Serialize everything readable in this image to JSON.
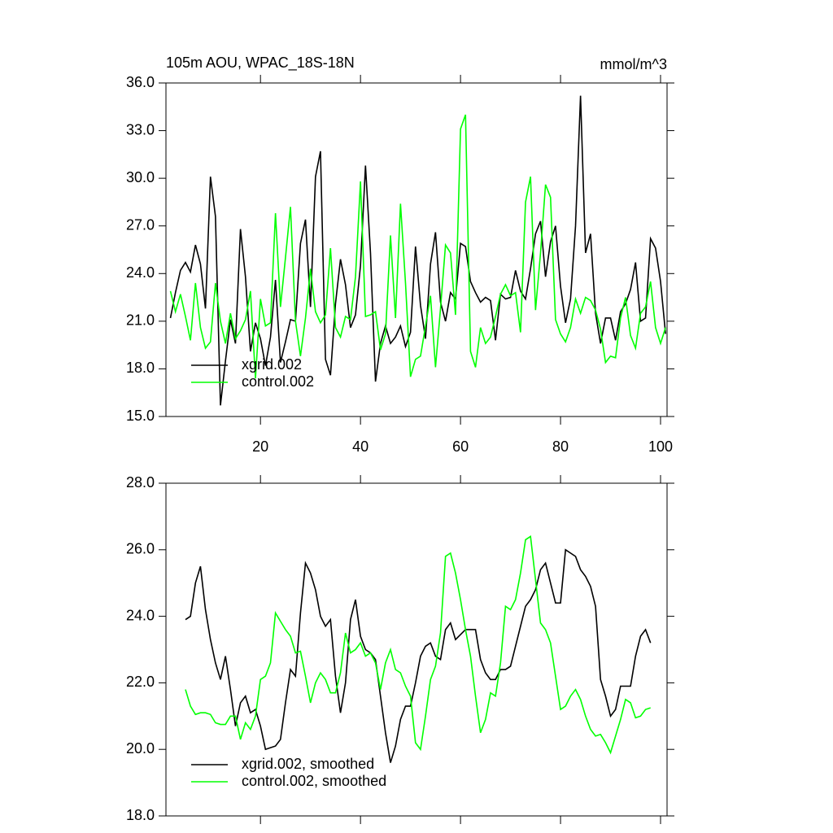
{
  "chart_data": [
    {
      "type": "line",
      "title": "105m AOU, WPAC_18S-18N",
      "units": "mmol/m^3",
      "x": [
        2,
        3,
        4,
        5,
        6,
        7,
        8,
        9,
        10,
        11,
        12,
        13,
        14,
        15,
        16,
        17,
        18,
        19,
        20,
        21,
        22,
        23,
        24,
        25,
        26,
        27,
        28,
        29,
        30,
        31,
        32,
        33,
        34,
        35,
        36,
        37,
        38,
        39,
        40,
        41,
        42,
        43,
        44,
        45,
        46,
        47,
        48,
        49,
        50,
        51,
        52,
        53,
        54,
        55,
        56,
        57,
        58,
        59,
        60,
        61,
        62,
        63,
        64,
        65,
        66,
        67,
        68,
        69,
        70,
        71,
        72,
        73,
        74,
        75,
        76,
        77,
        78,
        79,
        80,
        81,
        82,
        83,
        84,
        85,
        86,
        87,
        88,
        89,
        90,
        91,
        92,
        93,
        94,
        95,
        96,
        97,
        98,
        99,
        100,
        101
      ],
      "series": [
        {
          "name": "xgrid.002",
          "color": "#000000",
          "values": [
            21.2,
            22.8,
            24.2,
            24.7,
            24.1,
            25.8,
            24.6,
            21.8,
            30.1,
            27.6,
            15.7,
            18.5,
            21.1,
            19.6,
            26.8,
            23.8,
            19.1,
            20.9,
            19.9,
            18.2,
            20.0,
            23.6,
            18.4,
            19.7,
            21.1,
            21.0,
            25.9,
            27.4,
            21.9,
            30.1,
            31.7,
            18.6,
            17.6,
            22.1,
            24.9,
            23.3,
            20.6,
            21.4,
            24.5,
            30.8,
            25.3,
            17.2,
            19.6,
            20.7,
            19.6,
            20.0,
            20.7,
            19.4,
            20.3,
            25.7,
            22.0,
            19.9,
            24.6,
            26.6,
            22.2,
            21.0,
            22.8,
            22.4,
            25.9,
            25.7,
            23.5,
            22.8,
            22.2,
            22.5,
            22.3,
            19.8,
            22.7,
            22.4,
            22.5,
            24.2,
            22.9,
            22.4,
            24.3,
            26.5,
            27.3,
            23.8,
            26.0,
            27.0,
            23.2,
            20.9,
            22.4,
            27.0,
            35.2,
            25.3,
            26.5,
            21.5,
            19.6,
            21.2,
            21.2,
            19.8,
            21.6,
            22.1,
            23.0,
            24.7,
            21.0,
            21.2,
            26.2,
            25.6,
            23.5,
            20.2
          ]
        },
        {
          "name": "control.002",
          "color": "#00ff00",
          "values": [
            22.9,
            21.6,
            22.7,
            21.3,
            19.8,
            23.4,
            20.6,
            19.3,
            19.7,
            23.4,
            21.0,
            19.6,
            21.5,
            19.9,
            20.4,
            21.1,
            22.9,
            17.4,
            22.4,
            20.7,
            20.9,
            27.8,
            21.9,
            25.0,
            28.2,
            21.0,
            18.8,
            21.2,
            24.3,
            21.6,
            20.9,
            21.4,
            25.6,
            20.6,
            20.0,
            21.3,
            21.1,
            23.8,
            29.8,
            21.3,
            21.4,
            21.6,
            19.2,
            20.2,
            26.4,
            21.2,
            28.4,
            23.4,
            17.5,
            18.6,
            18.8,
            20.7,
            22.6,
            18.1,
            21.8,
            25.8,
            25.3,
            21.4,
            33.1,
            34.0,
            19.1,
            18.1,
            20.6,
            19.6,
            20.0,
            21.3,
            22.7,
            23.3,
            22.6,
            22.8,
            20.3,
            28.5,
            30.1,
            21.7,
            25.3,
            29.6,
            28.8,
            21.1,
            20.2,
            19.7,
            20.6,
            22.4,
            21.5,
            22.5,
            22.3,
            21.7,
            20.5,
            18.4,
            18.8,
            18.7,
            21.2,
            22.5,
            20.1,
            19.3,
            21.5,
            21.9,
            23.5,
            20.6,
            19.6,
            20.6
          ]
        }
      ],
      "xlim": [
        1.1,
        101.3
      ],
      "xticks": [
        20,
        40,
        60,
        80,
        100
      ],
      "xtick_labels": true,
      "ylim": [
        15,
        36
      ],
      "yticks": [
        {
          "value": 15,
          "label": "15.0"
        },
        {
          "value": 18,
          "label": "18.0"
        },
        {
          "value": 21,
          "label": "21.0"
        },
        {
          "value": 24,
          "label": "24.0"
        },
        {
          "value": 27,
          "label": "27.0"
        },
        {
          "value": 30,
          "label": "30.0"
        },
        {
          "value": 33,
          "label": "33.0"
        },
        {
          "value": 36,
          "label": "36.0"
        }
      ],
      "legend": "lower left"
    },
    {
      "type": "line",
      "x": [
        5,
        6,
        7,
        8,
        9,
        10,
        11,
        12,
        13,
        14,
        15,
        16,
        17,
        18,
        19,
        20,
        21,
        22,
        23,
        24,
        25,
        26,
        27,
        28,
        29,
        30,
        31,
        32,
        33,
        34,
        35,
        36,
        37,
        38,
        39,
        40,
        41,
        42,
        43,
        44,
        45,
        46,
        47,
        48,
        49,
        50,
        51,
        52,
        53,
        54,
        55,
        56,
        57,
        58,
        59,
        60,
        61,
        62,
        63,
        64,
        65,
        66,
        67,
        68,
        69,
        70,
        71,
        72,
        73,
        74,
        75,
        76,
        77,
        78,
        79,
        80,
        81,
        82,
        83,
        84,
        85,
        86,
        87,
        88,
        89,
        90,
        91,
        92,
        93,
        94,
        95,
        96,
        97,
        98
      ],
      "series": [
        {
          "name": "xgrid.002, smoothed",
          "color": "#000000",
          "values": [
            23.9,
            24.0,
            25.0,
            25.5,
            24.2,
            23.3,
            22.6,
            22.1,
            22.8,
            21.8,
            20.7,
            21.4,
            21.6,
            21.1,
            21.2,
            20.7,
            20.0,
            20.05,
            20.1,
            20.3,
            21.4,
            22.4,
            22.2,
            24.1,
            25.6,
            25.3,
            24.8,
            24.0,
            23.7,
            23.9,
            22.2,
            21.1,
            22.0,
            23.9,
            24.5,
            23.4,
            23.0,
            22.9,
            22.7,
            21.6,
            20.5,
            19.6,
            20.1,
            20.9,
            21.3,
            21.3,
            22.0,
            22.8,
            23.1,
            23.2,
            22.8,
            22.7,
            23.6,
            23.8,
            23.3,
            23.45,
            23.6,
            23.6,
            23.6,
            22.7,
            22.3,
            22.1,
            22.1,
            22.4,
            22.4,
            22.5,
            23.1,
            23.7,
            24.3,
            24.5,
            24.8,
            25.4,
            25.6,
            25.0,
            24.4,
            24.4,
            26.0,
            25.9,
            25.8,
            25.4,
            25.2,
            24.9,
            24.3,
            22.1,
            21.6,
            21.0,
            21.2,
            21.9,
            21.9,
            21.9,
            22.8,
            23.4,
            23.6,
            23.2
          ]
        },
        {
          "name": "control.002, smoothed",
          "color": "#00ff00",
          "values": [
            21.8,
            21.3,
            21.05,
            21.1,
            21.1,
            21.05,
            20.8,
            20.75,
            20.75,
            21.0,
            21.0,
            20.3,
            20.8,
            20.6,
            21.0,
            22.1,
            22.2,
            22.6,
            24.1,
            23.85,
            23.6,
            23.4,
            22.9,
            22.95,
            22.2,
            21.4,
            22.0,
            22.3,
            22.1,
            21.7,
            21.7,
            22.3,
            23.5,
            22.9,
            23.0,
            23.2,
            22.8,
            22.9,
            22.6,
            21.8,
            22.6,
            23.0,
            22.4,
            22.3,
            21.9,
            21.6,
            20.2,
            20.0,
            21.0,
            22.1,
            22.5,
            23.5,
            25.8,
            25.9,
            25.3,
            24.5,
            23.6,
            22.8,
            21.6,
            20.5,
            20.9,
            21.7,
            21.6,
            22.6,
            24.3,
            24.2,
            24.5,
            25.3,
            26.3,
            26.4,
            25.1,
            23.8,
            23.6,
            23.2,
            22.2,
            21.2,
            21.3,
            21.6,
            21.8,
            21.5,
            21.0,
            20.6,
            20.4,
            20.45,
            20.2,
            19.9,
            20.4,
            20.9,
            21.5,
            21.4,
            20.95,
            21.0,
            21.2,
            21.25
          ]
        }
      ],
      "xlim": [
        1.1,
        101.3
      ],
      "xticks": [
        20,
        40,
        60,
        80,
        100
      ],
      "xtick_labels": false,
      "ylim": [
        18,
        28
      ],
      "yticks": [
        {
          "value": 18,
          "label": "18.0"
        },
        {
          "value": 20,
          "label": "20.0"
        },
        {
          "value": 22,
          "label": "22.0"
        },
        {
          "value": 24,
          "label": "24.0"
        },
        {
          "value": 26,
          "label": "26.0"
        },
        {
          "value": 28,
          "label": "28.0"
        }
      ],
      "legend": "lower left"
    }
  ]
}
